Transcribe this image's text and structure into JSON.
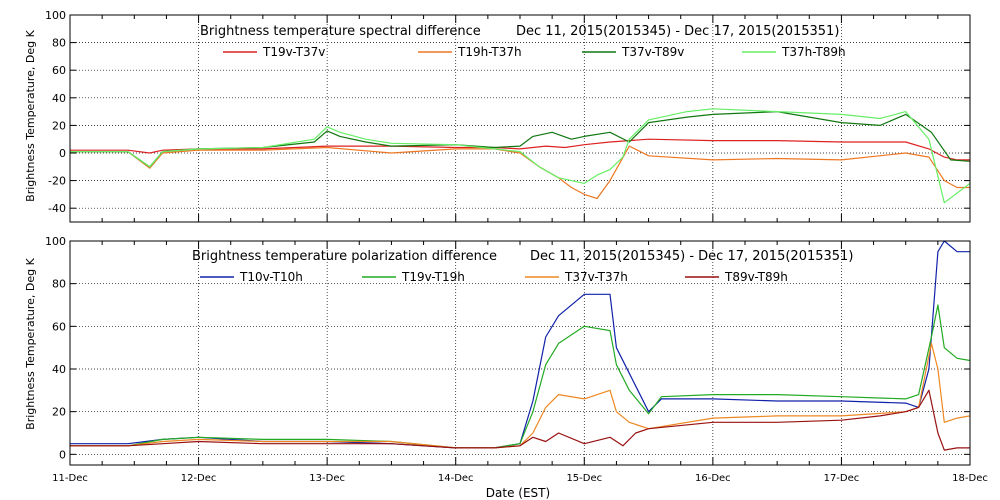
{
  "figure": {
    "xlabel": "Date (EST)",
    "x_ticks": [
      "11-Dec",
      "12-Dec",
      "13-Dec",
      "14-Dec",
      "15-Dec",
      "16-Dec",
      "17-Dec",
      "18-Dec"
    ]
  },
  "chart_data": [
    {
      "type": "line",
      "title": "Brightness temperature spectral difference",
      "date_range": "Dec 11, 2015(2015345) - Dec 17, 2015(2015351)",
      "ylabel": "Brightness Temperature, Deg K",
      "xlabel": "",
      "xlim": [
        0,
        7
      ],
      "ylim": [
        -50,
        100
      ],
      "y_ticks": [
        -40,
        -20,
        0,
        20,
        40,
        60,
        80,
        100
      ],
      "grid": true,
      "legend_position": "top",
      "series": [
        {
          "name": "T19v-T37v",
          "color": "#dd2222",
          "x": [
            0,
            0.45,
            0.62,
            0.72,
            1.0,
            1.5,
            2.0,
            2.5,
            3.0,
            3.3,
            3.5,
            3.7,
            3.85,
            4.0,
            4.2,
            4.35,
            4.5,
            5.0,
            5.5,
            6.0,
            6.5,
            6.68,
            6.8,
            6.9,
            7.0
          ],
          "y": [
            2,
            2,
            0,
            2,
            3,
            3,
            5,
            5,
            4,
            4,
            3,
            5,
            4,
            6,
            8,
            9,
            10,
            9,
            9,
            8,
            8,
            3,
            -3,
            -5,
            -5
          ]
        },
        {
          "name": "T19h-T37h",
          "color": "#ee7722",
          "x": [
            0,
            0.45,
            0.62,
            0.72,
            1.0,
            1.5,
            2.0,
            2.5,
            3.0,
            3.3,
            3.5,
            3.65,
            3.8,
            3.9,
            4.0,
            4.1,
            4.2,
            4.35,
            4.5,
            5.0,
            5.5,
            6.0,
            6.5,
            6.68,
            6.8,
            6.9,
            7.0
          ],
          "y": [
            1,
            1,
            -11,
            0,
            2,
            2,
            4,
            0,
            3,
            3,
            0,
            -10,
            -18,
            -25,
            -30,
            -33,
            -20,
            5,
            -2,
            -5,
            -4,
            -5,
            0,
            -3,
            -20,
            -25,
            -25
          ]
        },
        {
          "name": "T37v-T89v",
          "color": "#117711",
          "x": [
            0,
            0.45,
            0.62,
            0.72,
            1.0,
            1.5,
            1.9,
            2.0,
            2.1,
            2.3,
            2.5,
            3.0,
            3.3,
            3.5,
            3.6,
            3.75,
            3.9,
            4.0,
            4.2,
            4.35,
            4.5,
            4.8,
            5.0,
            5.5,
            6.0,
            6.3,
            6.5,
            6.7,
            6.85,
            7.0
          ],
          "y": [
            1,
            1,
            -10,
            1,
            3,
            4,
            8,
            16,
            12,
            8,
            5,
            6,
            4,
            5,
            12,
            15,
            10,
            12,
            15,
            8,
            22,
            26,
            28,
            30,
            22,
            20,
            28,
            15,
            -5,
            -6
          ]
        },
        {
          "name": "T37h-T89h",
          "color": "#66ee66",
          "x": [
            0,
            0.45,
            0.62,
            0.72,
            1.0,
            1.5,
            1.9,
            2.0,
            2.1,
            2.3,
            2.5,
            3.0,
            3.3,
            3.5,
            3.65,
            3.8,
            3.9,
            4.0,
            4.1,
            4.2,
            4.3,
            4.35,
            4.5,
            4.8,
            5.0,
            5.5,
            6.0,
            6.3,
            6.5,
            6.68,
            6.8,
            7.0
          ],
          "y": [
            1,
            1,
            -10,
            1,
            3,
            4,
            10,
            19,
            15,
            10,
            7,
            6,
            3,
            1,
            -10,
            -18,
            -20,
            -22,
            -16,
            -12,
            -3,
            10,
            24,
            30,
            32,
            30,
            28,
            25,
            30,
            10,
            -36,
            -22
          ]
        }
      ]
    },
    {
      "type": "line",
      "title": "Brightness temperature polarization difference",
      "date_range": "Dec 11, 2015(2015345) - Dec 17, 2015(2015351)",
      "ylabel": "Brightness Temperature, Deg K",
      "xlabel": "Date (EST)",
      "xlim": [
        0,
        7
      ],
      "ylim": [
        -5,
        100
      ],
      "y_ticks": [
        0,
        20,
        40,
        60,
        80,
        100
      ],
      "grid": true,
      "legend_position": "top",
      "series": [
        {
          "name": "T10v-T10h",
          "color": "#1122aa",
          "x": [
            0,
            0.45,
            0.72,
            1.0,
            1.5,
            2.0,
            2.5,
            3.0,
            3.3,
            3.5,
            3.6,
            3.7,
            3.8,
            4.0,
            4.2,
            4.25,
            4.35,
            4.5,
            4.6,
            5.0,
            5.5,
            6.0,
            6.5,
            6.6,
            6.68,
            6.75,
            6.8,
            6.9,
            7.0
          ],
          "y": [
            5,
            5,
            7,
            8,
            6,
            6,
            5,
            3,
            3,
            5,
            25,
            55,
            65,
            75,
            75,
            50,
            38,
            20,
            26,
            26,
            25,
            25,
            24,
            22,
            40,
            95,
            100,
            95,
            95
          ]
        },
        {
          "name": "T19v-T19h",
          "color": "#22aa22",
          "x": [
            0,
            0.45,
            0.72,
            1.0,
            1.5,
            2.0,
            2.5,
            3.0,
            3.3,
            3.5,
            3.6,
            3.7,
            3.8,
            4.0,
            4.2,
            4.25,
            4.35,
            4.5,
            4.6,
            5.0,
            5.5,
            6.0,
            6.5,
            6.6,
            6.7,
            6.75,
            6.8,
            6.9,
            7.0
          ],
          "y": [
            4,
            4,
            7,
            8,
            7,
            7,
            6,
            3,
            3,
            5,
            20,
            42,
            52,
            60,
            58,
            42,
            30,
            19,
            27,
            28,
            28,
            27,
            26,
            28,
            55,
            70,
            50,
            45,
            44
          ]
        },
        {
          "name": "T37v-T37h",
          "color": "#ee8822",
          "x": [
            0,
            0.45,
            0.72,
            1.0,
            1.5,
            2.0,
            2.5,
            3.0,
            3.3,
            3.5,
            3.6,
            3.7,
            3.8,
            4.0,
            4.2,
            4.25,
            4.35,
            4.5,
            5.0,
            5.5,
            6.0,
            6.5,
            6.6,
            6.7,
            6.75,
            6.8,
            6.9,
            7.0
          ],
          "y": [
            4,
            4,
            6,
            7,
            6,
            6,
            6,
            3,
            3,
            4,
            10,
            22,
            28,
            26,
            30,
            20,
            15,
            12,
            17,
            18,
            18,
            20,
            22,
            52,
            40,
            15,
            17,
            18
          ]
        },
        {
          "name": "T89v-T89h",
          "color": "#991111",
          "x": [
            0,
            0.45,
            0.72,
            1.0,
            1.5,
            2.0,
            2.5,
            3.0,
            3.3,
            3.5,
            3.6,
            3.7,
            3.8,
            4.0,
            4.2,
            4.3,
            4.4,
            4.5,
            5.0,
            5.5,
            6.0,
            6.3,
            6.5,
            6.6,
            6.68,
            6.75,
            6.8,
            6.9,
            7.0
          ],
          "y": [
            4,
            4,
            5,
            6,
            5,
            5,
            5,
            3,
            3,
            4,
            8,
            6,
            10,
            5,
            8,
            4,
            10,
            12,
            15,
            15,
            16,
            18,
            20,
            22,
            30,
            10,
            2,
            3,
            3
          ]
        }
      ]
    }
  ]
}
